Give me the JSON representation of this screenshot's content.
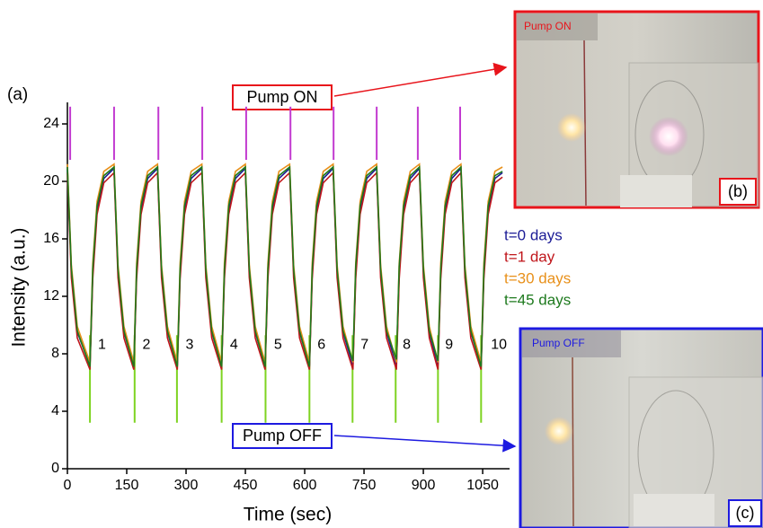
{
  "chart_data": {
    "type": "line",
    "panel_label": "(a)",
    "x_label": "Time (sec)",
    "y_label": "Intensity (a.u.)",
    "xlim": [
      0,
      1118
    ],
    "ylim": [
      0,
      25.5
    ],
    "xticks": [
      0,
      150,
      300,
      450,
      600,
      750,
      900,
      1050
    ],
    "yticks": [
      0,
      4,
      8,
      12,
      16,
      20,
      24
    ],
    "x": [
      0,
      10,
      25,
      57,
      64,
      75,
      92,
      118,
      128,
      143,
      168,
      175,
      186,
      203,
      228,
      238,
      253,
      278,
      285,
      296,
      313,
      340,
      350,
      365,
      390,
      397,
      408,
      425,
      450,
      460,
      475,
      500,
      507,
      518,
      535,
      562,
      572,
      587,
      612,
      619,
      630,
      647,
      672,
      682,
      697,
      722,
      729,
      740,
      757,
      782,
      792,
      807,
      832,
      839,
      850,
      867,
      890,
      900,
      915,
      937,
      944,
      955,
      972,
      995,
      1005,
      1020,
      1046,
      1053,
      1064,
      1081,
      1100
    ],
    "series": [
      {
        "name": "t=0 days",
        "color": "#1c1c96",
        "values": [
          20.9,
          13.8,
          9.5,
          7.2,
          13.6,
          18.0,
          20.2,
          20.9,
          13.8,
          9.5,
          7.2,
          13.6,
          18.0,
          20.2,
          20.9,
          13.8,
          9.5,
          7.2,
          13.6,
          18.0,
          20.2,
          20.9,
          13.8,
          9.5,
          7.2,
          13.6,
          18.0,
          20.2,
          20.9,
          13.8,
          9.5,
          7.2,
          13.6,
          18.0,
          20.2,
          20.9,
          13.8,
          9.5,
          7.2,
          13.6,
          18.0,
          20.2,
          20.9,
          13.8,
          9.5,
          7.2,
          13.6,
          18.0,
          20.2,
          20.9,
          13.8,
          9.5,
          7.2,
          13.6,
          18.0,
          20.2,
          20.9,
          13.8,
          9.5,
          7.2,
          13.6,
          18.0,
          20.2,
          20.9,
          13.8,
          9.5,
          7.2,
          13.6,
          18.0,
          20.2,
          20.6
        ]
      },
      {
        "name": "t=1 day",
        "color": "#c0161b",
        "values": [
          20.6,
          13.3,
          9.1,
          6.9,
          13.2,
          17.7,
          19.9,
          20.6,
          13.3,
          9.1,
          6.9,
          13.2,
          17.7,
          19.9,
          20.6,
          13.3,
          9.1,
          6.9,
          13.2,
          17.7,
          19.9,
          20.6,
          13.3,
          9.1,
          6.9,
          13.2,
          17.7,
          19.9,
          20.6,
          13.3,
          9.1,
          6.9,
          13.2,
          17.7,
          19.9,
          20.6,
          13.3,
          9.1,
          6.9,
          13.2,
          17.7,
          19.9,
          20.6,
          13.3,
          9.1,
          6.9,
          13.2,
          17.7,
          19.9,
          20.6,
          13.3,
          9.1,
          6.9,
          13.2,
          17.7,
          19.9,
          20.6,
          13.3,
          9.1,
          6.9,
          13.2,
          17.7,
          19.9,
          20.6,
          13.3,
          9.1,
          6.9,
          13.2,
          17.7,
          19.9,
          20.3
        ]
      },
      {
        "name": "t=30 days",
        "color": "#e8901a",
        "values": [
          21.2,
          14.2,
          9.9,
          7.4,
          14.3,
          18.6,
          20.7,
          21.2,
          14.2,
          9.9,
          7.4,
          14.3,
          18.6,
          20.7,
          21.2,
          14.2,
          9.9,
          7.4,
          14.3,
          18.6,
          20.7,
          21.2,
          14.2,
          9.9,
          7.4,
          14.3,
          18.6,
          20.7,
          21.2,
          14.2,
          9.9,
          7.4,
          14.3,
          18.6,
          20.7,
          21.2,
          14.2,
          9.9,
          7.4,
          14.3,
          18.6,
          20.7,
          21.2,
          14.2,
          9.9,
          7.4,
          14.3,
          18.6,
          20.7,
          21.2,
          14.2,
          9.9,
          7.4,
          14.3,
          18.6,
          20.7,
          21.2,
          14.2,
          9.9,
          7.4,
          14.3,
          18.6,
          20.7,
          21.2,
          14.2,
          9.9,
          7.4,
          14.3,
          18.6,
          20.7,
          21.0
        ]
      },
      {
        "name": "t=45 days",
        "color": "#1e7a1e",
        "values": [
          21.0,
          13.9,
          9.6,
          7.1,
          13.9,
          18.3,
          20.4,
          21.0,
          13.9,
          9.6,
          7.1,
          13.9,
          18.3,
          20.4,
          21.0,
          13.9,
          9.6,
          7.1,
          13.9,
          18.3,
          20.4,
          21.0,
          13.9,
          9.6,
          7.1,
          13.9,
          18.3,
          20.4,
          21.0,
          13.9,
          9.6,
          7.1,
          13.9,
          18.3,
          20.4,
          21.0,
          13.9,
          9.6,
          7.1,
          13.9,
          18.3,
          20.4,
          21.0,
          13.9,
          9.6,
          7.5,
          14.1,
          18.3,
          20.4,
          21.0,
          13.9,
          9.6,
          7.6,
          14.1,
          18.3,
          20.4,
          21.0,
          13.9,
          9.6,
          7.5,
          13.9,
          18.3,
          20.4,
          21.0,
          13.9,
          9.6,
          7.1,
          13.9,
          18.3,
          20.4,
          20.7
        ]
      }
    ],
    "pump_on_x": [
      7,
      118,
      230,
      341,
      452,
      564,
      673,
      782,
      886,
      993
    ],
    "pump_on_y": [
      21.5,
      25.2
    ],
    "pump_on_color": "#c23ad0",
    "pump_off_x": [
      57,
      170,
      277,
      390,
      501,
      612,
      721,
      830,
      937,
      1046
    ],
    "pump_off_y": [
      3.2,
      9.3
    ],
    "pump_off_color": "#7ed321",
    "cycle_labels": [
      "1",
      "2",
      "3",
      "4",
      "5",
      "6",
      "7",
      "8",
      "9",
      "10"
    ]
  },
  "callouts": {
    "on": "Pump ON",
    "off": "Pump OFF"
  },
  "photo_b": {
    "label": "Pump ON",
    "tag": "(b)"
  },
  "photo_c": {
    "label": "Pump OFF",
    "tag": "(c)"
  }
}
